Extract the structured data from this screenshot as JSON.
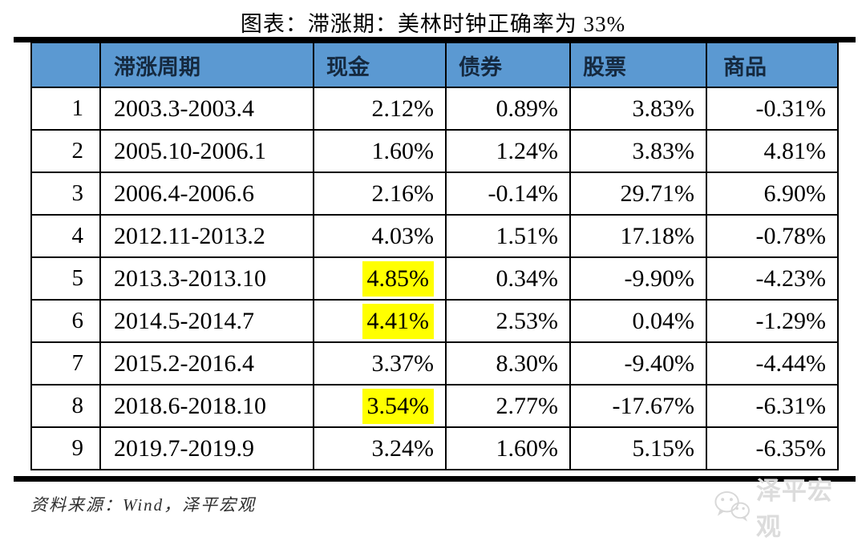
{
  "title": "图表：滞涨期：美林时钟正确率为 33%",
  "chart_data": {
    "type": "table",
    "title": "图表：滞涨期：美林时钟正确率为 33%",
    "columns": [
      "",
      "滞涨周期",
      "现金",
      "债券",
      "股票",
      "商品"
    ],
    "rows": [
      [
        "1",
        "2003.3-2003.4",
        "2.12%",
        "0.89%",
        "3.83%",
        "-0.31%"
      ],
      [
        "2",
        "2005.10-2006.1",
        "1.60%",
        "1.24%",
        "3.83%",
        "4.81%"
      ],
      [
        "3",
        "2006.4-2006.6",
        "2.16%",
        "-0.14%",
        "29.71%",
        "6.90%"
      ],
      [
        "4",
        "2012.11-2013.2",
        "4.03%",
        "1.51%",
        "17.18%",
        "-0.78%"
      ],
      [
        "5",
        "2013.3-2013.10",
        "4.85%",
        "0.34%",
        "-9.90%",
        "-4.23%"
      ],
      [
        "6",
        "2014.5-2014.7",
        "4.41%",
        "2.53%",
        "0.04%",
        "-1.29%"
      ],
      [
        "7",
        "2015.2-2016.4",
        "3.37%",
        "8.30%",
        "-9.40%",
        "-4.44%"
      ],
      [
        "8",
        "2018.6-2018.10",
        "3.54%",
        "2.77%",
        "-17.67%",
        "-6.31%"
      ],
      [
        "9",
        "2019.7-2019.9",
        "3.24%",
        "1.60%",
        "5.15%",
        "-6.35%"
      ]
    ],
    "highlighted_cells": [
      [
        4,
        2
      ],
      [
        5,
        2
      ],
      [
        7,
        2
      ]
    ],
    "notes": "highlighted_cells are [rowIndex, colIndex] zero-based; highlights mark best-performing cash returns"
  },
  "source": "资料来源：Wind，泽平宏观",
  "watermark": {
    "text": "泽平宏观",
    "icon": "wechat-icon"
  },
  "colors": {
    "header_bg": "#5b99d2",
    "header_text": "#15293f",
    "highlight": "#ffff00",
    "border": "#000000",
    "watermark_gray": "#dcdcdc"
  }
}
